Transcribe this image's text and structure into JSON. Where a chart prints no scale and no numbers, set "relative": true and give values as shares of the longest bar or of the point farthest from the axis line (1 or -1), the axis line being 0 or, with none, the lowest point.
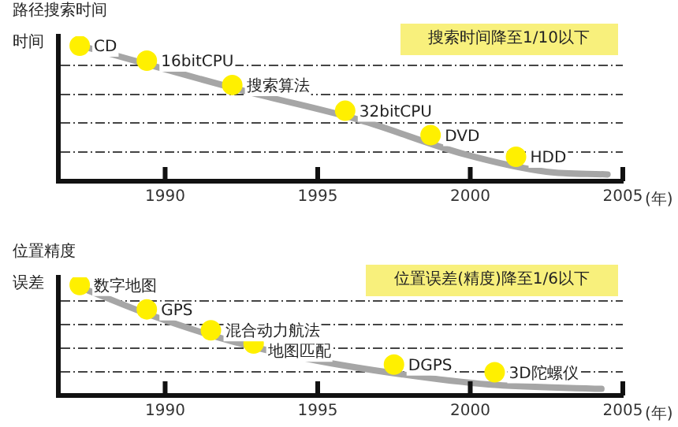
{
  "chart_data": [
    {
      "type": "scatter",
      "title": "路径搜索时间",
      "ylabel": "时间",
      "xlabel": "(年)",
      "relative": true,
      "xlim": [
        1986.5,
        2005
      ],
      "xticks": [
        1990,
        1995,
        2000,
        2005
      ],
      "grid": "y",
      "legend": false,
      "line_style": "solid",
      "series": [
        {
          "type": "line",
          "marker": "none",
          "color": "#a6a6a6",
          "x": [
            1987.4,
            1992.7,
            1996.4,
            1999.8,
            2002.5,
            2004.5
          ],
          "values": [
            0.99,
            0.66,
            0.45,
            0.2,
            0.07,
            0.05
          ]
        },
        {
          "type": "scatter",
          "marker": "circle",
          "color": "#fff000",
          "x": [
            1987.2,
            1989.4,
            1992.2,
            1995.9,
            1998.7,
            2001.5
          ],
          "values": [
            1,
            0.89,
            0.71,
            0.52,
            0.34,
            0.18
          ]
        }
      ],
      "annotations": [
        {
          "text": "CD",
          "x": 1987.2,
          "y": 1
        },
        {
          "text": "16bitCPU",
          "x": 1989.4,
          "y": 0.89
        },
        {
          "text": "搜索算法",
          "x": 1992.2,
          "y": 0.71
        },
        {
          "text": "32bitCPU",
          "x": 1995.9,
          "y": 0.52
        },
        {
          "text": "DVD",
          "x": 1998.7,
          "y": 0.34
        },
        {
          "text": "HDD",
          "x": 2001.5,
          "y": 0.18
        },
        "搜索时间降至1/10以下"
      ]
    },
    {
      "type": "scatter",
      "title": "位置精度",
      "ylabel": "误差",
      "xlabel": "(年)",
      "relative": true,
      "xlim": [
        1986.5,
        2005
      ],
      "xticks": [
        1990,
        1995,
        2000,
        2005
      ],
      "grid": "y",
      "legend": false,
      "line_style": "solid",
      "series": [
        {
          "type": "line",
          "marker": "none",
          "color": "#a6a6a6",
          "x": [
            1987.4,
            1989.6,
            1992.2,
            1994.7,
            1997.8,
            2000.6,
            2004.3
          ],
          "values": [
            0.96,
            0.72,
            0.49,
            0.33,
            0.19,
            0.1,
            0.06
          ]
        },
        {
          "type": "scatter",
          "marker": "circle",
          "color": "#fff000",
          "x": [
            1987.2,
            1989.4,
            1991.5,
            1992.9,
            1997.5,
            2000.8
          ],
          "values": [
            1,
            0.78,
            0.59,
            0.47,
            0.28,
            0.21
          ]
        }
      ],
      "annotations": [
        {
          "text": "数字地图",
          "x": 1987.2,
          "y": 1
        },
        {
          "text": "GPS",
          "x": 1989.4,
          "y": 0.78
        },
        {
          "text": "混合动力航法",
          "x": 1991.5,
          "y": 0.59
        },
        {
          "text": "地图匹配",
          "x": 1992.9,
          "y": 0.47
        },
        {
          "text": "DGPS",
          "x": 1997.5,
          "y": 0.28
        },
        {
          "text": "3D陀螺仪",
          "x": 2000.8,
          "y": 0.21
        },
        "位置误差(精度)降至1/6以下"
      ]
    }
  ]
}
